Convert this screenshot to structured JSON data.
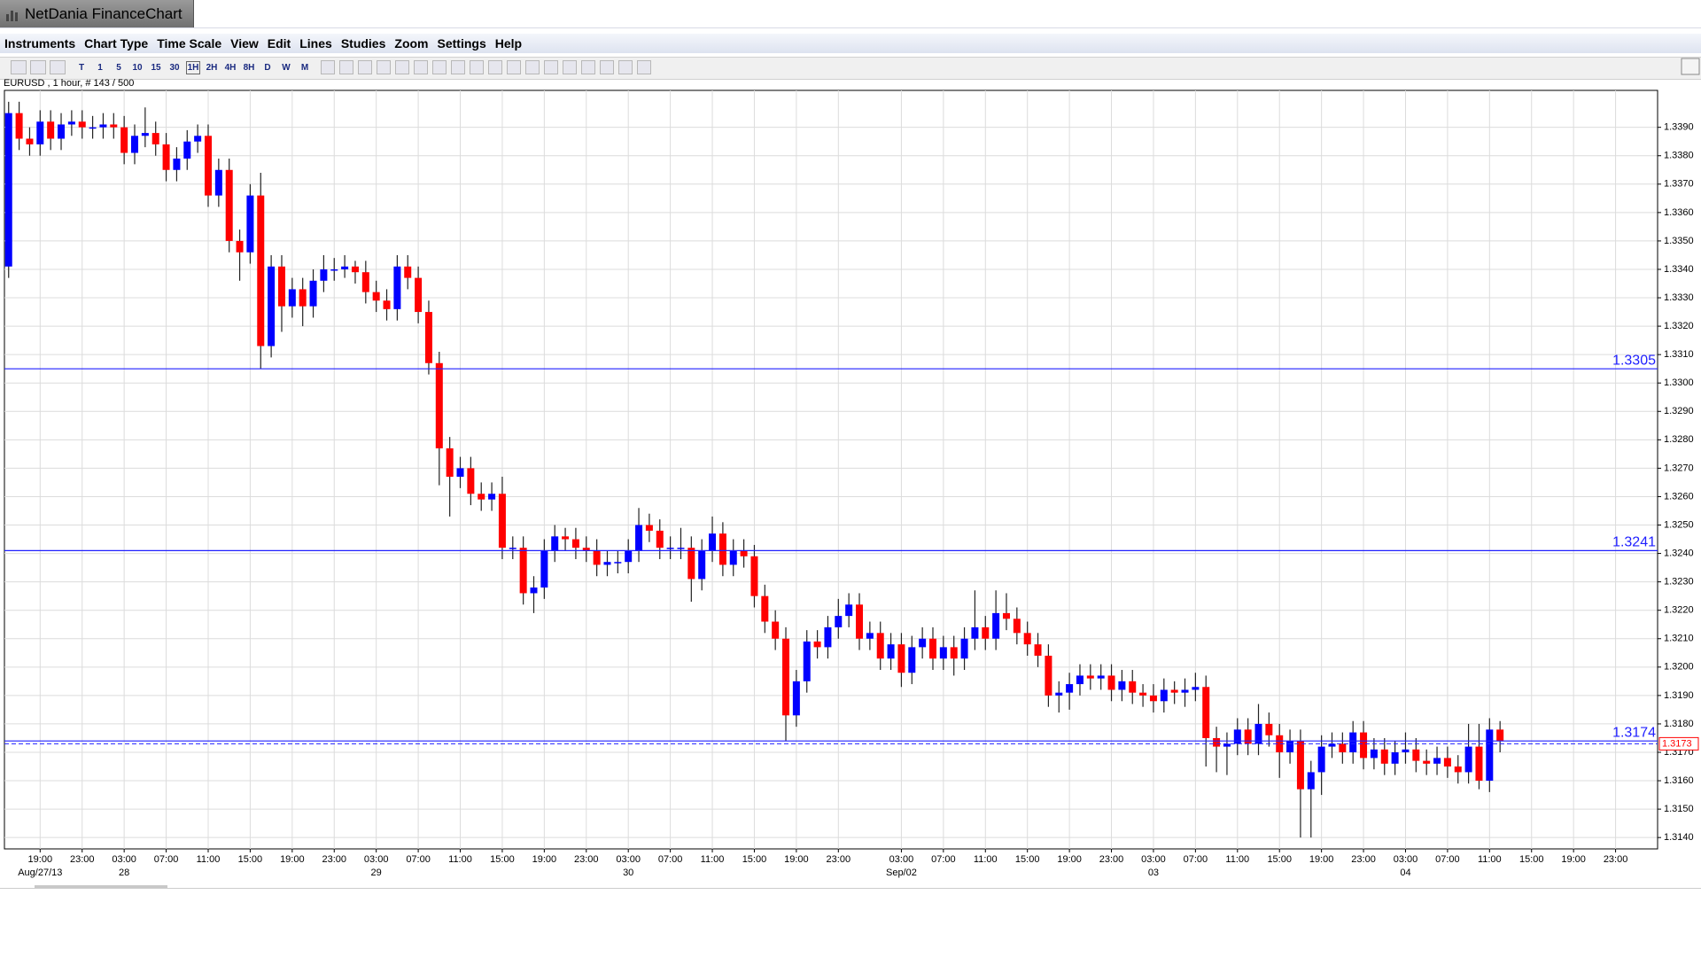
{
  "window": {
    "title": "NetDania FinanceChart",
    "menu": [
      "Instruments",
      "Chart Type",
      "Time Scale",
      "View",
      "Edit",
      "Lines",
      "Studies",
      "Zoom",
      "Settings",
      "Help"
    ],
    "toolbar": {
      "scales": [
        "T",
        "1",
        "5",
        "10",
        "15",
        "30",
        "1H",
        "2H",
        "4H",
        "8H",
        "D",
        "W",
        "M"
      ]
    }
  },
  "chart_data": {
    "type": "candlestick",
    "title": "EURUSD , 1 hour, # 143 / 500",
    "up_color": "#0000ff",
    "down_color": "#ff0000",
    "wick_color": "#222222",
    "grid": true,
    "xlim": [
      -0.4,
      157
    ],
    "ylim": [
      1.3136,
      1.3403
    ],
    "xticks": [
      {
        "value": 3,
        "label": "19:00"
      },
      {
        "value": 7,
        "label": "23:00"
      },
      {
        "value": 11,
        "label": "03:00"
      },
      {
        "value": 15,
        "label": "07:00"
      },
      {
        "value": 19,
        "label": "11:00"
      },
      {
        "value": 23,
        "label": "15:00"
      },
      {
        "value": 27,
        "label": "19:00"
      },
      {
        "value": 31,
        "label": "23:00"
      },
      {
        "value": 35,
        "label": "03:00"
      },
      {
        "value": 39,
        "label": "07:00"
      },
      {
        "value": 43,
        "label": "11:00"
      },
      {
        "value": 47,
        "label": "15:00"
      },
      {
        "value": 51,
        "label": "19:00"
      },
      {
        "value": 55,
        "label": "23:00"
      },
      {
        "value": 59,
        "label": "03:00"
      },
      {
        "value": 63,
        "label": "07:00"
      },
      {
        "value": 67,
        "label": "11:00"
      },
      {
        "value": 71,
        "label": "15:00"
      },
      {
        "value": 75,
        "label": "19:00"
      },
      {
        "value": 79,
        "label": "23:00"
      },
      {
        "value": 85,
        "label": "03:00"
      },
      {
        "value": 89,
        "label": "07:00"
      },
      {
        "value": 93,
        "label": "11:00"
      },
      {
        "value": 97,
        "label": "15:00"
      },
      {
        "value": 101,
        "label": "19:00"
      },
      {
        "value": 105,
        "label": "23:00"
      },
      {
        "value": 109,
        "label": "03:00"
      },
      {
        "value": 113,
        "label": "07:00"
      },
      {
        "value": 117,
        "label": "11:00"
      },
      {
        "value": 121,
        "label": "15:00"
      },
      {
        "value": 125,
        "label": "19:00"
      },
      {
        "value": 129,
        "label": "23:00"
      },
      {
        "value": 133,
        "label": "03:00"
      },
      {
        "value": 137,
        "label": "07:00"
      },
      {
        "value": 141,
        "label": "11:00"
      },
      {
        "value": 145,
        "label": "15:00"
      },
      {
        "value": 149,
        "label": "19:00"
      },
      {
        "value": 153,
        "label": "23:00"
      }
    ],
    "date_ticks": [
      {
        "value": 3,
        "label": "Aug/27/13"
      },
      {
        "value": 11,
        "label": "28"
      },
      {
        "value": 35,
        "label": "29"
      },
      {
        "value": 59,
        "label": "30"
      },
      {
        "value": 85,
        "label": "Sep/02"
      },
      {
        "value": 109,
        "label": "03"
      },
      {
        "value": 133,
        "label": "04"
      }
    ],
    "yticks": [
      {
        "value": 1.314,
        "label": "1.3140"
      },
      {
        "value": 1.315,
        "label": "1.3150"
      },
      {
        "value": 1.316,
        "label": "1.3160"
      },
      {
        "value": 1.317,
        "label": "1.3170"
      },
      {
        "value": 1.318,
        "label": "1.3180"
      },
      {
        "value": 1.319,
        "label": "1.3190"
      },
      {
        "value": 1.32,
        "label": "1.3200"
      },
      {
        "value": 1.321,
        "label": "1.3210"
      },
      {
        "value": 1.322,
        "label": "1.3220"
      },
      {
        "value": 1.323,
        "label": "1.3230"
      },
      {
        "value": 1.324,
        "label": "1.3240"
      },
      {
        "value": 1.325,
        "label": "1.3250"
      },
      {
        "value": 1.326,
        "label": "1.3260"
      },
      {
        "value": 1.327,
        "label": "1.3270"
      },
      {
        "value": 1.328,
        "label": "1.3280"
      },
      {
        "value": 1.329,
        "label": "1.3290"
      },
      {
        "value": 1.33,
        "label": "1.3300"
      },
      {
        "value": 1.331,
        "label": "1.3310"
      },
      {
        "value": 1.332,
        "label": "1.3320"
      },
      {
        "value": 1.333,
        "label": "1.3330"
      },
      {
        "value": 1.334,
        "label": "1.3340"
      },
      {
        "value": 1.335,
        "label": "1.3350"
      },
      {
        "value": 1.336,
        "label": "1.3360"
      },
      {
        "value": 1.337,
        "label": "1.3370"
      },
      {
        "value": 1.338,
        "label": "1.3380"
      },
      {
        "value": 1.339,
        "label": "1.3390"
      }
    ],
    "hlines": [
      1.3305,
      1.3241,
      1.3174
    ],
    "hline_color": "#2020ff",
    "last_price": 1.3173,
    "last_price_color": "#ff0000",
    "open": [
      1.3341,
      1.3395,
      1.3386,
      1.3384,
      1.3392,
      1.3386,
      1.3391,
      1.3392,
      1.339,
      1.339,
      1.3391,
      1.339,
      1.3381,
      1.3387,
      1.3388,
      1.3384,
      1.3375,
      1.3379,
      1.3385,
      1.3387,
      1.3366,
      1.3375,
      1.335,
      1.3346,
      1.3366,
      1.3313,
      1.3341,
      1.3327,
      1.3333,
      1.3327,
      1.3336,
      1.334,
      1.334,
      1.3341,
      1.3339,
      1.3332,
      1.3329,
      1.3326,
      1.3341,
      1.3337,
      1.3325,
      1.3307,
      1.3277,
      1.3267,
      1.327,
      1.3261,
      1.3259,
      1.3261,
      1.3242,
      1.3242,
      1.3226,
      1.3228,
      1.3241,
      1.3246,
      1.3245,
      1.3242,
      1.3241,
      1.3236,
      1.3237,
      1.3237,
      1.3241,
      1.325,
      1.3248,
      1.3242,
      1.3242,
      1.3242,
      1.3231,
      1.3241,
      1.3247,
      1.3236,
      1.3241,
      1.3239,
      1.3225,
      1.3216,
      1.321,
      1.3183,
      1.3195,
      1.3209,
      1.3207,
      1.3214,
      1.3218,
      1.3222,
      1.321,
      1.3212,
      1.3203,
      1.3208,
      1.3198,
      1.3207,
      1.321,
      1.3203,
      1.3207,
      1.3203,
      1.321,
      1.3214,
      1.321,
      1.3219,
      1.3217,
      1.3212,
      1.3208,
      1.3204,
      1.319,
      1.3191,
      1.3194,
      1.3197,
      1.3196,
      1.3197,
      1.3192,
      1.3195,
      1.3191,
      1.319,
      1.3188,
      1.3192,
      1.3191,
      1.3192,
      1.3193,
      1.3175,
      1.3172,
      1.3173,
      1.3178,
      1.3173,
      1.318,
      1.3176,
      1.317,
      1.3174,
      1.3157,
      1.3163,
      1.3172,
      1.3173,
      1.317,
      1.3177,
      1.3168,
      1.3171,
      1.3166,
      1.317,
      1.3171,
      1.3167,
      1.3166,
      1.3168,
      1.3165,
      1.3163,
      1.3172,
      1.316,
      1.3178
    ],
    "high": [
      1.3399,
      1.3399,
      1.339,
      1.3396,
      1.3396,
      1.3395,
      1.3396,
      1.3396,
      1.3394,
      1.3395,
      1.3395,
      1.3394,
      1.3391,
      1.3397,
      1.3392,
      1.3388,
      1.3383,
      1.3389,
      1.3391,
      1.3391,
      1.3379,
      1.3379,
      1.3354,
      1.337,
      1.3374,
      1.3345,
      1.3345,
      1.3337,
      1.3337,
      1.334,
      1.3345,
      1.3344,
      1.3345,
      1.3343,
      1.3343,
      1.3336,
      1.3333,
      1.3345,
      1.3345,
      1.3341,
      1.3329,
      1.3311,
      1.3281,
      1.3274,
      1.3274,
      1.3265,
      1.3265,
      1.3267,
      1.3246,
      1.3246,
      1.3232,
      1.3245,
      1.325,
      1.3249,
      1.3249,
      1.3246,
      1.3245,
      1.3241,
      1.3241,
      1.3245,
      1.3256,
      1.3254,
      1.3252,
      1.3246,
      1.3249,
      1.3246,
      1.3245,
      1.3253,
      1.3251,
      1.3245,
      1.3245,
      1.3243,
      1.3229,
      1.322,
      1.3214,
      1.3199,
      1.3213,
      1.3213,
      1.3218,
      1.3224,
      1.3226,
      1.3226,
      1.3216,
      1.3216,
      1.3212,
      1.3212,
      1.3211,
      1.3214,
      1.3214,
      1.3211,
      1.3211,
      1.3214,
      1.3227,
      1.3218,
      1.3227,
      1.3226,
      1.3221,
      1.3216,
      1.3212,
      1.3208,
      1.3195,
      1.3198,
      1.3201,
      1.3201,
      1.3201,
      1.3201,
      1.3199,
      1.3199,
      1.3194,
      1.3194,
      1.3196,
      1.3195,
      1.3196,
      1.3198,
      1.3197,
      1.3179,
      1.3177,
      1.3182,
      1.3182,
      1.3187,
      1.3184,
      1.318,
      1.3178,
      1.3178,
      1.3167,
      1.3176,
      1.3177,
      1.3177,
      1.3181,
      1.3181,
      1.3175,
      1.3175,
      1.3174,
      1.3177,
      1.3175,
      1.3171,
      1.3172,
      1.3172,
      1.3169,
      1.318,
      1.318,
      1.3182,
      1.3181
    ],
    "low": [
      1.3337,
      1.3382,
      1.338,
      1.338,
      1.3382,
      1.3382,
      1.3387,
      1.3386,
      1.3386,
      1.3386,
      1.3386,
      1.3377,
      1.3377,
      1.3383,
      1.338,
      1.3371,
      1.3371,
      1.3375,
      1.3381,
      1.3362,
      1.3362,
      1.3346,
      1.3336,
      1.3342,
      1.3305,
      1.3309,
      1.3318,
      1.3323,
      1.332,
      1.3323,
      1.3332,
      1.3336,
      1.3337,
      1.3335,
      1.3328,
      1.3325,
      1.3322,
      1.3322,
      1.3333,
      1.3321,
      1.3303,
      1.3264,
      1.3253,
      1.3263,
      1.3257,
      1.3255,
      1.3255,
      1.3238,
      1.3238,
      1.3222,
      1.3219,
      1.3224,
      1.3237,
      1.3241,
      1.3238,
      1.3237,
      1.3232,
      1.3232,
      1.3233,
      1.3233,
      1.3237,
      1.3244,
      1.3238,
      1.3238,
      1.3238,
      1.3223,
      1.3227,
      1.3237,
      1.3232,
      1.3232,
      1.3235,
      1.3221,
      1.3212,
      1.3206,
      1.3174,
      1.3179,
      1.3191,
      1.3203,
      1.3203,
      1.321,
      1.3214,
      1.3206,
      1.3206,
      1.3199,
      1.3199,
      1.3193,
      1.3194,
      1.3203,
      1.3199,
      1.3199,
      1.3197,
      1.3199,
      1.3206,
      1.3206,
      1.3206,
      1.3213,
      1.3208,
      1.3204,
      1.32,
      1.3186,
      1.3184,
      1.3185,
      1.319,
      1.3192,
      1.3192,
      1.3188,
      1.3188,
      1.3187,
      1.3186,
      1.3184,
      1.3184,
      1.3187,
      1.3186,
      1.3188,
      1.3165,
      1.3163,
      1.3162,
      1.3169,
      1.3169,
      1.3169,
      1.3172,
      1.3161,
      1.3166,
      1.314,
      1.314,
      1.3155,
      1.3168,
      1.3166,
      1.3166,
      1.3164,
      1.3164,
      1.3162,
      1.3162,
      1.3166,
      1.3163,
      1.3162,
      1.3162,
      1.3161,
      1.3159,
      1.3159,
      1.3157,
      1.3156,
      1.317
    ],
    "close": [
      1.3395,
      1.3386,
      1.3384,
      1.3392,
      1.3386,
      1.3391,
      1.3392,
      1.339,
      1.339,
      1.3391,
      1.339,
      1.3381,
      1.3387,
      1.3388,
      1.3384,
      1.3375,
      1.3379,
      1.3385,
      1.3387,
      1.3366,
      1.3375,
      1.335,
      1.3346,
      1.3366,
      1.3313,
      1.3341,
      1.3327,
      1.3333,
      1.3327,
      1.3336,
      1.334,
      1.334,
      1.3341,
      1.3339,
      1.3332,
      1.3329,
      1.3326,
      1.3341,
      1.3337,
      1.3325,
      1.3307,
      1.3277,
      1.3267,
      1.327,
      1.3261,
      1.3259,
      1.3261,
      1.3242,
      1.3242,
      1.3226,
      1.3228,
      1.3241,
      1.3246,
      1.3245,
      1.3242,
      1.3241,
      1.3236,
      1.3237,
      1.3237,
      1.3241,
      1.325,
      1.3248,
      1.3242,
      1.3242,
      1.3242,
      1.3231,
      1.3241,
      1.3247,
      1.3236,
      1.3241,
      1.3239,
      1.3225,
      1.3216,
      1.321,
      1.3183,
      1.3195,
      1.3209,
      1.3207,
      1.3214,
      1.3218,
      1.3222,
      1.321,
      1.3212,
      1.3203,
      1.3208,
      1.3198,
      1.3207,
      1.321,
      1.3203,
      1.3207,
      1.3203,
      1.321,
      1.3214,
      1.321,
      1.3219,
      1.3217,
      1.3212,
      1.3208,
      1.3204,
      1.319,
      1.3191,
      1.3194,
      1.3197,
      1.3196,
      1.3197,
      1.3192,
      1.3195,
      1.3191,
      1.319,
      1.3188,
      1.3192,
      1.3191,
      1.3192,
      1.3193,
      1.3175,
      1.3172,
      1.3173,
      1.3178,
      1.3173,
      1.318,
      1.3176,
      1.317,
      1.3174,
      1.3157,
      1.3163,
      1.3172,
      1.3173,
      1.317,
      1.3177,
      1.3168,
      1.3171,
      1.3166,
      1.317,
      1.3171,
      1.3167,
      1.3166,
      1.3168,
      1.3165,
      1.3163,
      1.3172,
      1.316,
      1.3178,
      1.3174
    ]
  }
}
